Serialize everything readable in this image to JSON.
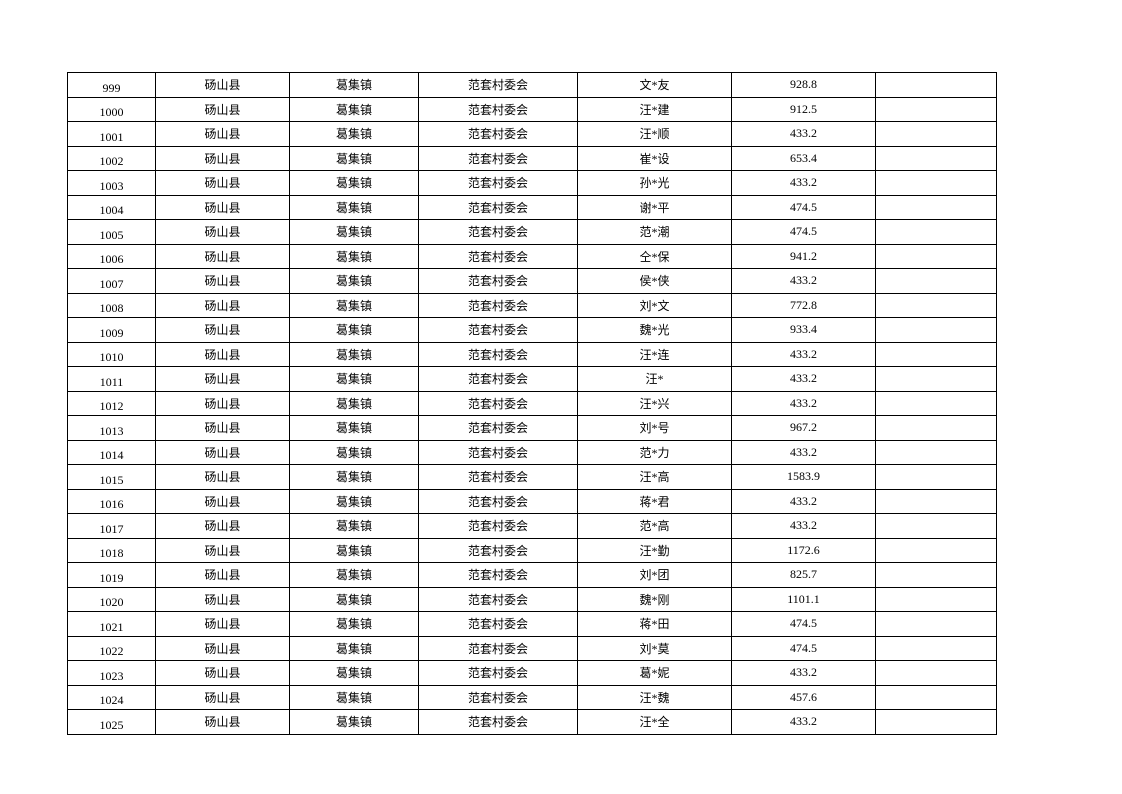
{
  "rows": [
    [
      "999",
      "砀山县",
      "葛集镇",
      "范套村委会",
      "文*友",
      "928.8",
      ""
    ],
    [
      "1000",
      "砀山县",
      "葛集镇",
      "范套村委会",
      "汪*建",
      "912.5",
      ""
    ],
    [
      "1001",
      "砀山县",
      "葛集镇",
      "范套村委会",
      "汪*顺",
      "433.2",
      ""
    ],
    [
      "1002",
      "砀山县",
      "葛集镇",
      "范套村委会",
      "崔*设",
      "653.4",
      ""
    ],
    [
      "1003",
      "砀山县",
      "葛集镇",
      "范套村委会",
      "孙*光",
      "433.2",
      ""
    ],
    [
      "1004",
      "砀山县",
      "葛集镇",
      "范套村委会",
      "谢*平",
      "474.5",
      ""
    ],
    [
      "1005",
      "砀山县",
      "葛集镇",
      "范套村委会",
      "范*潮",
      "474.5",
      ""
    ],
    [
      "1006",
      "砀山县",
      "葛集镇",
      "范套村委会",
      "仝*保",
      "941.2",
      ""
    ],
    [
      "1007",
      "砀山县",
      "葛集镇",
      "范套村委会",
      "侯*侠",
      "433.2",
      ""
    ],
    [
      "1008",
      "砀山县",
      "葛集镇",
      "范套村委会",
      "刘*文",
      "772.8",
      ""
    ],
    [
      "1009",
      "砀山县",
      "葛集镇",
      "范套村委会",
      "魏*光",
      "933.4",
      ""
    ],
    [
      "1010",
      "砀山县",
      "葛集镇",
      "范套村委会",
      "汪*连",
      "433.2",
      ""
    ],
    [
      "1011",
      "砀山县",
      "葛集镇",
      "范套村委会",
      "汪*",
      "433.2",
      ""
    ],
    [
      "1012",
      "砀山县",
      "葛集镇",
      "范套村委会",
      "汪*兴",
      "433.2",
      ""
    ],
    [
      "1013",
      "砀山县",
      "葛集镇",
      "范套村委会",
      "刘*号",
      "967.2",
      ""
    ],
    [
      "1014",
      "砀山县",
      "葛集镇",
      "范套村委会",
      "范*力",
      "433.2",
      ""
    ],
    [
      "1015",
      "砀山县",
      "葛集镇",
      "范套村委会",
      "汪*高",
      "1583.9",
      ""
    ],
    [
      "1016",
      "砀山县",
      "葛集镇",
      "范套村委会",
      "蒋*君",
      "433.2",
      ""
    ],
    [
      "1017",
      "砀山县",
      "葛集镇",
      "范套村委会",
      "范*高",
      "433.2",
      ""
    ],
    [
      "1018",
      "砀山县",
      "葛集镇",
      "范套村委会",
      "汪*勤",
      "1172.6",
      ""
    ],
    [
      "1019",
      "砀山县",
      "葛集镇",
      "范套村委会",
      "刘*团",
      "825.7",
      ""
    ],
    [
      "1020",
      "砀山县",
      "葛集镇",
      "范套村委会",
      "魏*刚",
      "1101.1",
      ""
    ],
    [
      "1021",
      "砀山县",
      "葛集镇",
      "范套村委会",
      "蒋*田",
      "474.5",
      ""
    ],
    [
      "1022",
      "砀山县",
      "葛集镇",
      "范套村委会",
      "刘*莫",
      "474.5",
      ""
    ],
    [
      "1023",
      "砀山县",
      "葛集镇",
      "范套村委会",
      "葛*妮",
      "433.2",
      ""
    ],
    [
      "1024",
      "砀山县",
      "葛集镇",
      "范套村委会",
      "汪*魏",
      "457.6",
      ""
    ],
    [
      "1025",
      "砀山县",
      "葛集镇",
      "范套村委会",
      "汪*全",
      "433.2",
      ""
    ]
  ]
}
